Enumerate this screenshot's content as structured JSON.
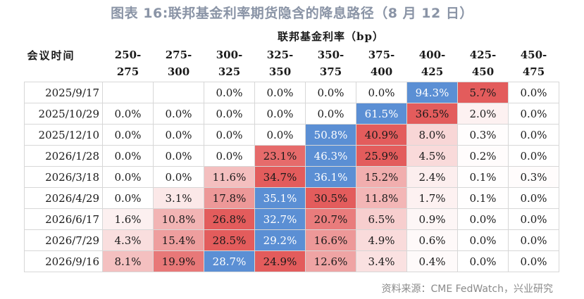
{
  "title": "图表 16:联邦基金利率期货隐含的降息路径（8 月 12 日）",
  "group_header": "联邦基金利率（bp）",
  "meeting_header": "会议时间",
  "ranges": [
    [
      "250-",
      "275"
    ],
    [
      "275-",
      "300"
    ],
    [
      "300-",
      "325"
    ],
    [
      "325-",
      "350"
    ],
    [
      "350-",
      "375"
    ],
    [
      "375-",
      "400"
    ],
    [
      "400-",
      "425"
    ],
    [
      "425-",
      "450"
    ],
    [
      "450-",
      "475"
    ]
  ],
  "rows": [
    {
      "date": "2025/9/17",
      "values": [
        "",
        "",
        "0.0%",
        "0.0%",
        "0.0%",
        "0.0%",
        "94.3%",
        "5.7%",
        "0.0%"
      ]
    },
    {
      "date": "2025/10/29",
      "values": [
        "0.0%",
        "0.0%",
        "0.0%",
        "0.0%",
        "0.0%",
        "61.5%",
        "36.5%",
        "2.0%",
        "0.0%"
      ]
    },
    {
      "date": "2025/12/10",
      "values": [
        "0.0%",
        "0.0%",
        "0.0%",
        "0.0%",
        "50.8%",
        "40.9%",
        "8.0%",
        "0.3%",
        "0.0%"
      ]
    },
    {
      "date": "2026/1/28",
      "values": [
        "0.0%",
        "0.0%",
        "0.0%",
        "23.1%",
        "46.3%",
        "25.9%",
        "4.5%",
        "0.2%",
        "0.0%"
      ]
    },
    {
      "date": "2026/3/18",
      "values": [
        "0.0%",
        "0.0%",
        "11.6%",
        "34.7%",
        "36.1%",
        "15.2%",
        "2.4%",
        "0.1%",
        "0.3%"
      ]
    },
    {
      "date": "2026/4/29",
      "values": [
        "0.0%",
        "3.1%",
        "17.8%",
        "35.1%",
        "30.5%",
        "11.8%",
        "1.7%",
        "0.1%",
        "0.0%"
      ]
    },
    {
      "date": "2026/6/17",
      "values": [
        "1.6%",
        "10.8%",
        "26.8%",
        "32.7%",
        "20.7%",
        "6.5%",
        "0.9%",
        "0.0%",
        "0.0%"
      ]
    },
    {
      "date": "2026/7/29",
      "values": [
        "4.3%",
        "15.4%",
        "28.5%",
        "29.2%",
        "16.6%",
        "4.9%",
        "0.6%",
        "0.0%",
        "0.0%"
      ]
    },
    {
      "date": "2026/9/16",
      "values": [
        "8.1%",
        "19.9%",
        "28.7%",
        "24.9%",
        "12.6%",
        "3.4%",
        "0.4%",
        "0.0%",
        "0.0%"
      ]
    }
  ],
  "colors": {
    "max_fill": "#5b8fd4",
    "heat_high": "#e35c5c",
    "heat_low": "#ffffff",
    "max_text": "#ffffff"
  },
  "source": "资料来源：CME FedWatch，兴业研究"
}
